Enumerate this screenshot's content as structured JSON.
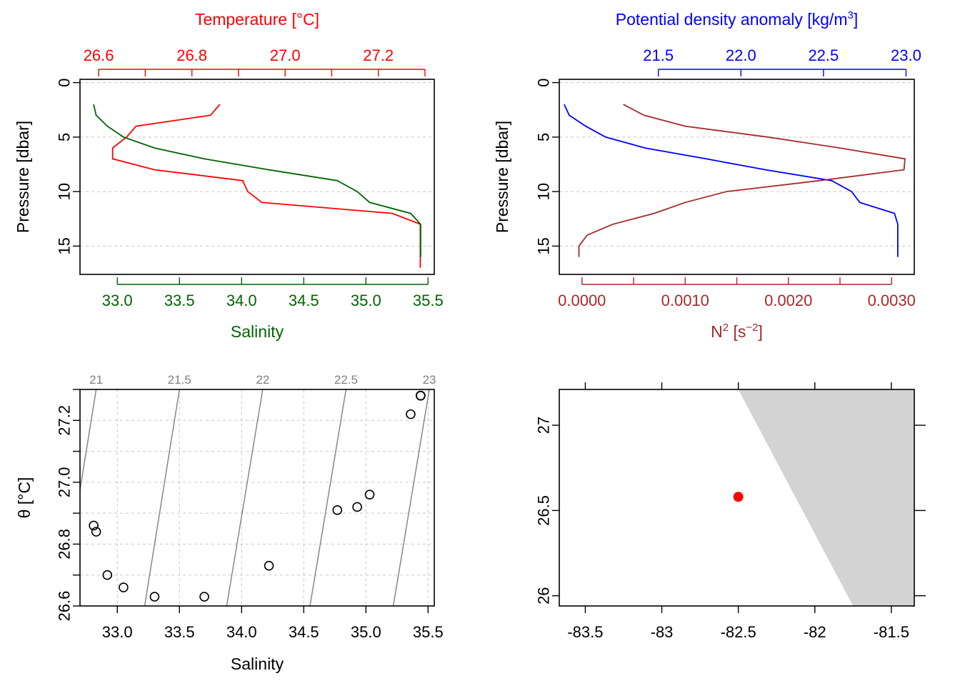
{
  "colors": {
    "temperature": "#ff0000",
    "salinity": "#006400",
    "density": "#0000ff",
    "n2": "#a52a2a",
    "isopycnal": "#808080",
    "land": "#d3d3d3",
    "station": "#ff0000"
  },
  "chart_data": [
    {
      "type": "line",
      "panel": "profile-temperature-salinity",
      "ylabel": "Pressure [dbar]",
      "ylim": [
        17.6,
        -0.3
      ],
      "yticks": [
        0,
        5,
        10,
        15
      ],
      "yticklabels": [
        "0",
        "5",
        "10",
        "15"
      ],
      "grid": true,
      "axes": {
        "top": {
          "label": "Temperature [°C]",
          "lim": [
            26.56,
            27.32
          ],
          "ticks": [
            26.6,
            26.7,
            26.8,
            26.9,
            27.0,
            27.1,
            27.2,
            27.3
          ],
          "ticklabels": [
            "26.6",
            "",
            "26.8",
            "",
            "27.0",
            "",
            "27.2",
            ""
          ]
        },
        "bottom": {
          "label": "Salinity",
          "lim": [
            32.7,
            35.55
          ],
          "ticks": [
            33.0,
            33.5,
            34.0,
            34.5,
            35.0,
            35.5
          ],
          "ticklabels": [
            "33.0",
            "33.5",
            "34.0",
            "34.5",
            "35.0",
            "35.5"
          ]
        }
      },
      "series": [
        {
          "axis": "top",
          "pressure": [
            2,
            3,
            4,
            5,
            6,
            7,
            8,
            9,
            9.1,
            10,
            11,
            12,
            13,
            14,
            15,
            16,
            17
          ],
          "values": [
            26.86,
            26.84,
            26.68,
            26.66,
            26.63,
            26.63,
            26.72,
            26.91,
            26.91,
            26.92,
            26.95,
            27.23,
            27.29,
            27.29,
            27.29,
            27.29,
            27.29
          ]
        },
        {
          "axis": "bottom",
          "pressure": [
            2,
            3,
            4,
            5,
            6,
            7,
            8,
            9,
            10,
            11,
            12,
            13,
            14,
            15,
            16
          ],
          "values": [
            32.81,
            32.83,
            32.92,
            33.05,
            33.3,
            33.7,
            34.22,
            34.77,
            34.93,
            35.03,
            35.36,
            35.44,
            35.44,
            35.44,
            35.44
          ]
        }
      ]
    },
    {
      "type": "line",
      "panel": "profile-density-n2",
      "ylabel": "Pressure [dbar]",
      "ylim": [
        17.6,
        -0.3
      ],
      "yticks": [
        0,
        5,
        10,
        15
      ],
      "yticklabels": [
        "0",
        "5",
        "10",
        "15"
      ],
      "grid": true,
      "axes": {
        "top": {
          "label": "Potential density anomaly [kg/m³]",
          "lim": [
            20.9,
            23.05
          ],
          "ticks": [
            21.5,
            22.0,
            22.5,
            23.0
          ],
          "ticklabels": [
            "21.5",
            "22.0",
            "22.5",
            "23.0"
          ]
        },
        "bottom": {
          "label": "N² [s⁻²]",
          "lim": [
            -0.00022,
            0.00322
          ],
          "ticks": [
            0,
            0.0005,
            0.001,
            0.0015,
            0.002,
            0.0025,
            0.003
          ],
          "ticklabels": [
            "0.0000",
            "",
            "0.0010",
            "",
            "0.0020",
            "",
            "0.0030"
          ]
        }
      },
      "series": [
        {
          "axis": "top",
          "pressure": [
            2,
            3,
            4,
            5,
            6,
            7,
            8,
            9,
            10,
            11,
            12,
            13,
            14,
            15,
            16
          ],
          "values": [
            20.93,
            20.96,
            21.06,
            21.18,
            21.42,
            21.79,
            22.15,
            22.55,
            22.67,
            22.72,
            22.93,
            22.95,
            22.95,
            22.95,
            22.95
          ]
        },
        {
          "axis": "bottom",
          "pressure": [
            2,
            3,
            4,
            5,
            6,
            7,
            8,
            9,
            10,
            11,
            12,
            13,
            14,
            15,
            16
          ],
          "values": [
            0.0004,
            0.0006,
            0.001,
            0.0018,
            0.0025,
            0.00313,
            0.00312,
            0.0023,
            0.0014,
            0.001,
            0.0007,
            0.0003,
            5e-05,
            -3e-05,
            -3e-05
          ]
        }
      ]
    },
    {
      "type": "scatter",
      "panel": "ts-diagram",
      "xlabel": "Salinity",
      "ylabel": "θ [°C]",
      "xlim": [
        32.7,
        35.55
      ],
      "ylim": [
        26.6,
        27.3
      ],
      "xticks": [
        33.0,
        33.5,
        34.0,
        34.5,
        35.0,
        35.5
      ],
      "xticklabels": [
        "33.0",
        "33.5",
        "34.0",
        "34.5",
        "35.0",
        "35.5"
      ],
      "yticks": [
        26.6,
        26.8,
        27.0,
        27.2
      ],
      "yticklabels": [
        "26.6",
        "26.8",
        "27.0",
        "27.2"
      ],
      "grid": true,
      "points": {
        "x": [
          32.81,
          32.83,
          32.92,
          33.05,
          33.3,
          33.7,
          34.22,
          34.77,
          34.93,
          35.03,
          35.36,
          35.44,
          35.44,
          35.44,
          35.44
        ],
        "y": [
          26.86,
          26.84,
          26.7,
          26.66,
          26.63,
          26.63,
          26.73,
          26.91,
          26.92,
          26.96,
          27.22,
          27.28,
          27.28,
          27.28,
          27.28
        ]
      },
      "isopycnals": [
        {
          "label": "21",
          "x_at_top": 32.83,
          "x_at_bottom": 32.55
        },
        {
          "label": "21.5",
          "x_at_top": 33.5,
          "x_at_bottom": 33.22
        },
        {
          "label": "22",
          "x_at_top": 34.17,
          "x_at_bottom": 33.88
        },
        {
          "label": "22.5",
          "x_at_top": 34.84,
          "x_at_bottom": 34.55
        },
        {
          "label": "23",
          "x_at_top": 35.51,
          "x_at_bottom": 35.22
        }
      ]
    },
    {
      "type": "scatter",
      "panel": "map",
      "xlim": [
        -83.67,
        -81.35
      ],
      "ylim": [
        25.94,
        27.21
      ],
      "xticks": [
        -83.5,
        -83.0,
        -82.5,
        -82.0,
        -81.5
      ],
      "xticklabels": [
        "-83.5",
        "-83",
        "-82.5",
        "-82",
        "-81.5"
      ],
      "yticks": [
        26.0,
        26.5,
        27.0
      ],
      "yticklabels": [
        "26",
        "26.5",
        "27"
      ],
      "station": {
        "lon": -82.5,
        "lat": 26.58
      },
      "coastline": {
        "lon": [
          -82.5,
          -81.35,
          -81.35,
          -81.75
        ],
        "lat": [
          27.21,
          27.21,
          25.94,
          25.94
        ]
      }
    }
  ]
}
